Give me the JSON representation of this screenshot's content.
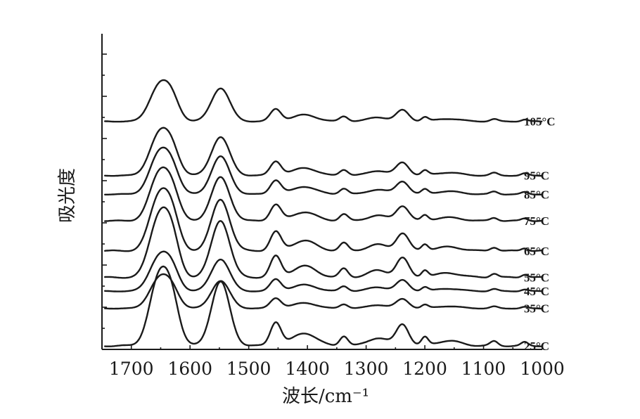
{
  "chart_data": {
    "type": "line",
    "xlabel": "波长/cm⁻¹",
    "ylabel": "吸光度",
    "xlim": [
      1750,
      1000
    ],
    "x_reversed": true,
    "x_ticks": [
      1700,
      1600,
      1500,
      1400,
      1300,
      1200,
      1100,
      1000
    ],
    "x_tick_labels": [
      "1700",
      "1600",
      "1500",
      "1400",
      "1300",
      "1200",
      "1100",
      "1000"
    ],
    "y_ticks_labeled": false,
    "series": [
      {
        "name": "25°C",
        "baseline": 0.3,
        "scale": 1.0
      },
      {
        "name": "35°C",
        "baseline": 7.9,
        "scale": 0.43
      },
      {
        "name": "45°C",
        "baseline": 11.4,
        "scale": 0.5
      },
      {
        "name": "55°C",
        "baseline": 14.2,
        "scale": 0.89
      },
      {
        "name": "65°C",
        "baseline": 19.6,
        "scale": 0.8
      },
      {
        "name": "75°C",
        "baseline": 25.7,
        "scale": 0.68
      },
      {
        "name": "85°C",
        "baseline": 31.1,
        "scale": 0.59
      },
      {
        "name": "95°C",
        "baseline": 34.9,
        "scale": 0.6
      },
      {
        "name": "105°C",
        "baseline": 45.9,
        "scale": 0.52
      }
    ]
  }
}
